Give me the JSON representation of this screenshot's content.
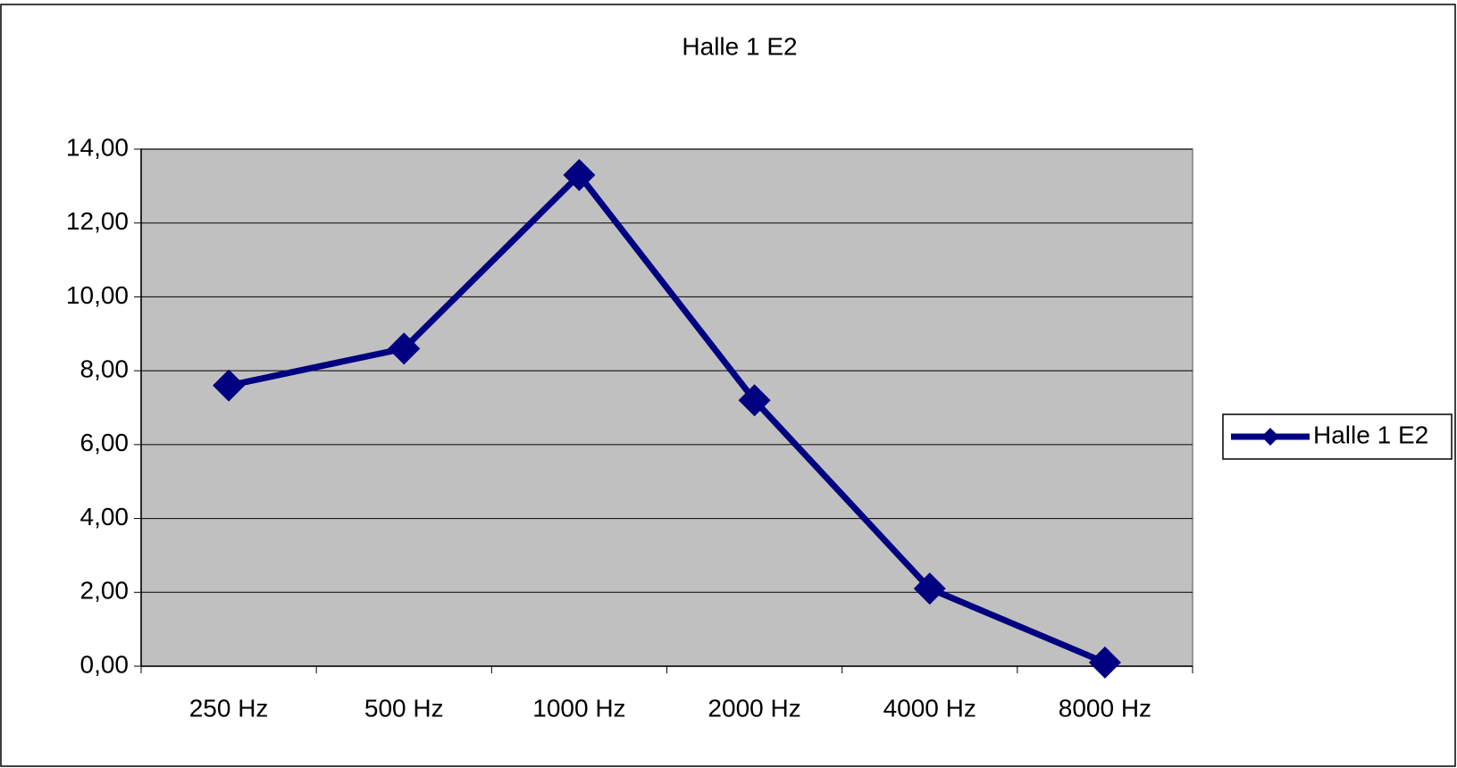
{
  "chart_data": {
    "type": "line",
    "title": "Halle 1 E2",
    "categories": [
      "250 Hz",
      "500 Hz",
      "1000 Hz",
      "2000 Hz",
      "4000 Hz",
      "8000 Hz"
    ],
    "series": [
      {
        "name": "Halle 1 E2",
        "color": "#000080",
        "values": [
          7.6,
          8.6,
          13.3,
          7.2,
          2.1,
          0.1
        ]
      }
    ],
    "ylim": [
      0,
      14
    ],
    "yticks": [
      {
        "value": 0,
        "label": "0,00"
      },
      {
        "value": 2,
        "label": "2,00"
      },
      {
        "value": 4,
        "label": "4,00"
      },
      {
        "value": 6,
        "label": "6,00"
      },
      {
        "value": 8,
        "label": "8,00"
      },
      {
        "value": 10,
        "label": "10,00"
      },
      {
        "value": 12,
        "label": "12,00"
      },
      {
        "value": 14,
        "label": "14,00"
      }
    ],
    "grid": true,
    "legend": "right"
  }
}
